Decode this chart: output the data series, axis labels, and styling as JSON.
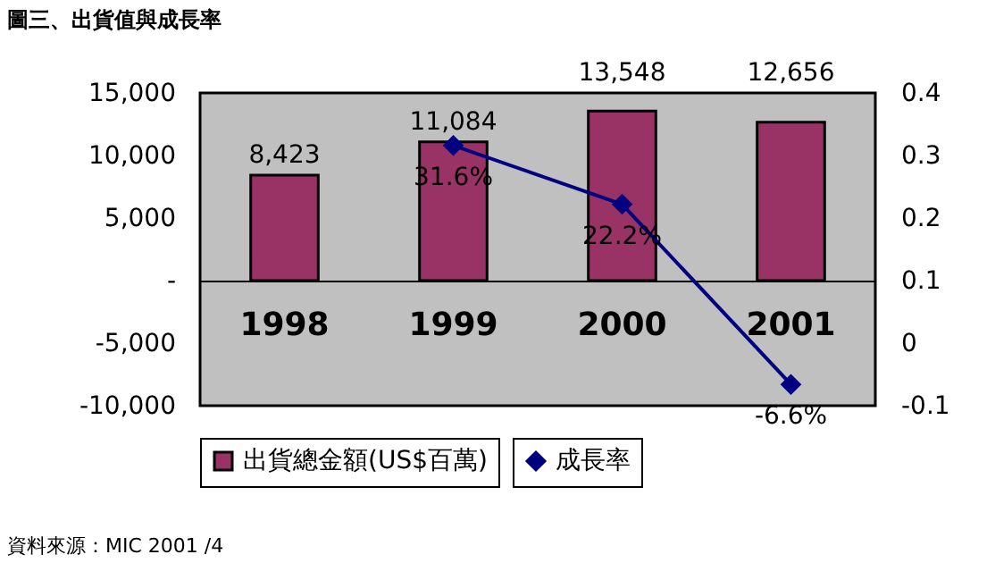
{
  "chart_data": {
    "type": "bar",
    "title": "圖三、出貨值與成長率",
    "categories": [
      "1998",
      "1999",
      "2000",
      "2001"
    ],
    "series": [
      {
        "name": "出貨總金額(US$百萬)",
        "color": "#993366",
        "values": [
          8423,
          11084,
          13548,
          12656
        ],
        "value_labels": [
          "8,423",
          "11,084",
          "13,548",
          "12,656"
        ]
      },
      {
        "name": "成長率",
        "type": "line",
        "axis": "y2",
        "color": "#000080",
        "marker": "diamond",
        "values": [
          null,
          0.316,
          0.222,
          -0.066
        ],
        "value_labels": [
          null,
          "31.6%",
          "22.2%",
          "-6.6%"
        ]
      }
    ],
    "ylim": [
      -10000,
      15000
    ],
    "yticks": [
      {
        "value": -10000,
        "label": "-10,000"
      },
      {
        "value": -5000,
        "label": "-5,000"
      },
      {
        "value": 0,
        "label": "-"
      },
      {
        "value": 5000,
        "label": "5,000"
      },
      {
        "value": 10000,
        "label": "10,000"
      },
      {
        "value": 15000,
        "label": "15,000"
      }
    ],
    "y2lim": [
      -0.1,
      0.4
    ],
    "y2ticks": [
      -0.1,
      0,
      0.1,
      0.2,
      0.3,
      0.4
    ],
    "legend": "bottom",
    "grid": false,
    "annotations": [
      "資料來源：MIC 2001 /4"
    ]
  }
}
